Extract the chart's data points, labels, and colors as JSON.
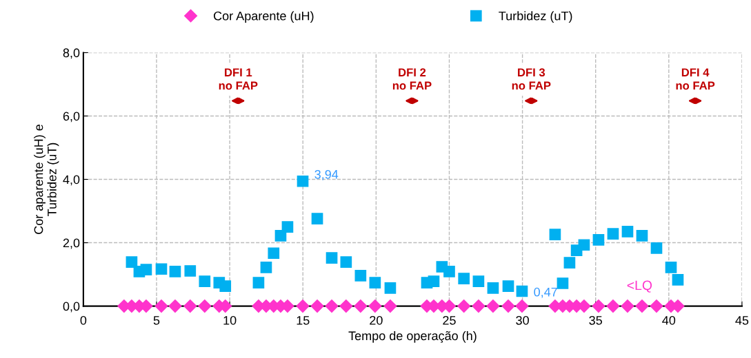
{
  "chart_data": {
    "type": "scatter",
    "xlabel": "Tempo de operação (h)",
    "ylabel": "Cor aparente (uH) e\nTurbidez (uT)",
    "xlim": [
      0,
      45
    ],
    "xticks": [
      0,
      5,
      10,
      15,
      20,
      25,
      30,
      35,
      40,
      45
    ],
    "ylim": [
      0,
      8
    ],
    "yticks": [
      {
        "value": 0,
        "label": "0,0"
      },
      {
        "value": 2,
        "label": "2,0"
      },
      {
        "value": 4,
        "label": "4,0"
      },
      {
        "value": 6,
        "label": "6,0"
      },
      {
        "value": 8,
        "label": "8,0"
      }
    ],
    "grid": true,
    "legend": "top",
    "series": [
      {
        "name": "Cor Aparente (uH)",
        "color": "#ff33cc",
        "marker": "diamond",
        "x": [
          2.78,
          3.3,
          3.82,
          4.29,
          5.33,
          6.27,
          7.3,
          8.29,
          9.28,
          9.7,
          11.97,
          12.49,
          13.0,
          13.48,
          13.95,
          14.99,
          15.98,
          16.97,
          17.95,
          18.94,
          19.93,
          20.97,
          23.47,
          23.94,
          24.5,
          25.0,
          26.0,
          27.0,
          27.99,
          29.03,
          29.97,
          32.23,
          32.75,
          33.22,
          33.7,
          34.21,
          35.2,
          36.19,
          37.18,
          38.17,
          39.16,
          40.15,
          40.62
        ],
        "values": [
          0,
          0,
          0,
          0,
          0,
          0,
          0,
          0,
          0,
          0,
          0,
          0,
          0,
          0,
          0,
          0,
          0,
          0,
          0,
          0,
          0,
          0,
          0,
          0,
          0,
          0,
          0,
          0,
          0,
          0,
          0,
          0,
          0,
          0,
          0,
          0,
          0,
          0,
          0,
          0,
          0,
          0,
          0
        ]
      },
      {
        "name": "Turbidez (uT)",
        "color": "#00b0f0",
        "marker": "square",
        "x": [
          3.3,
          3.82,
          4.29,
          5.33,
          6.27,
          7.3,
          8.29,
          9.28,
          9.7,
          11.97,
          12.49,
          13.0,
          13.48,
          13.95,
          14.99,
          15.98,
          16.97,
          17.95,
          18.94,
          19.93,
          20.97,
          23.47,
          23.94,
          24.5,
          25.0,
          26.0,
          27.0,
          27.99,
          29.03,
          29.97,
          32.23,
          32.75,
          33.22,
          33.7,
          34.21,
          35.2,
          36.19,
          37.18,
          38.17,
          39.16,
          40.15,
          40.62
        ],
        "values": [
          1.39,
          1.09,
          1.15,
          1.17,
          1.09,
          1.11,
          0.78,
          0.74,
          0.63,
          0.74,
          1.22,
          1.67,
          2.22,
          2.5,
          3.94,
          2.76,
          1.52,
          1.39,
          0.96,
          0.74,
          0.57,
          0.74,
          0.78,
          1.24,
          1.09,
          0.87,
          0.78,
          0.57,
          0.63,
          0.47,
          2.26,
          0.72,
          1.37,
          1.76,
          1.93,
          2.09,
          2.28,
          2.35,
          2.22,
          1.83,
          1.22,
          0.83
        ],
        "value_labels": [
          null,
          null,
          null,
          null,
          null,
          null,
          null,
          null,
          null,
          null,
          null,
          null,
          null,
          null,
          "3,94",
          null,
          null,
          null,
          null,
          null,
          null,
          null,
          null,
          null,
          null,
          null,
          null,
          null,
          null,
          "0,47",
          null,
          null,
          null,
          null,
          null,
          null,
          null,
          null,
          null,
          null,
          null,
          null
        ]
      }
    ],
    "annotations": [
      "DFI 1\nno FAP",
      "DFI 2\nno FAP",
      "DFI 3\nno FAP",
      "DFI 4\nno FAP",
      {
        "text": "<LQ",
        "x": 38.0,
        "y": 0
      }
    ]
  }
}
